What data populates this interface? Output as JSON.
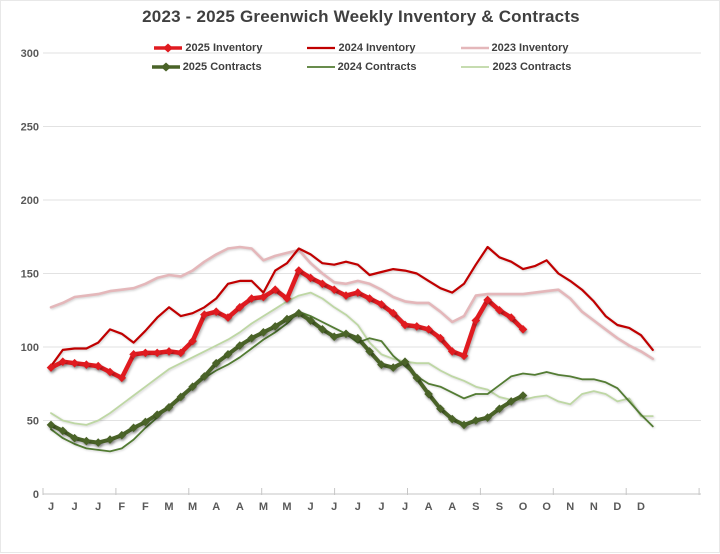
{
  "chart_data": {
    "type": "line",
    "title": "2023 - 2025 Greenwich Weekly Inventory & Contracts",
    "xlabel": "",
    "ylabel": "",
    "ylim": [
      0,
      300
    ],
    "y_ticks": [
      0,
      50,
      100,
      150,
      200,
      250,
      300
    ],
    "grid": "horizontal",
    "legend_position": "top",
    "x_unit": "week (52 weeks per year, labels every 2 weeks by month initial)",
    "x_tick_labels": [
      "J",
      "J",
      "J",
      "F",
      "F",
      "M",
      "M",
      "A",
      "A",
      "M",
      "M",
      "J",
      "J",
      "J",
      "J",
      "J",
      "A",
      "A",
      "S",
      "S",
      "O",
      "O",
      "N",
      "N",
      "D",
      "D"
    ],
    "series": [
      {
        "name": "2025 Inventory",
        "color": "#e01b20",
        "width": 4.5,
        "marker": "diamond",
        "values": [
          86,
          90,
          89,
          88,
          87,
          83,
          79,
          95,
          96,
          96,
          97,
          96,
          104,
          122,
          124,
          120,
          127,
          133,
          134,
          139,
          133,
          152,
          147,
          143,
          139,
          135,
          137,
          133,
          129,
          123,
          115,
          114,
          112,
          106,
          97,
          94,
          118,
          132,
          125,
          120,
          112
        ]
      },
      {
        "name": "2024 Inventory",
        "color": "#c00000",
        "width": 2.2,
        "marker": "none",
        "values": [
          87,
          98,
          99,
          99,
          103,
          112,
          109,
          103,
          111,
          120,
          127,
          121,
          123,
          127,
          133,
          143,
          145,
          145,
          137,
          152,
          157,
          167,
          163,
          157,
          156,
          158,
          156,
          149,
          151,
          153,
          152,
          150,
          145,
          140,
          137,
          143,
          156,
          168,
          161,
          158,
          153,
          155,
          159,
          150,
          145,
          139,
          131,
          121,
          115,
          113,
          108,
          98
        ]
      },
      {
        "name": "2023 Inventory",
        "color": "#e4b7ba",
        "width": 2.6,
        "marker": "none",
        "values": [
          127,
          130,
          134,
          135,
          136,
          138,
          139,
          140,
          143,
          147,
          149,
          148,
          152,
          158,
          163,
          167,
          168,
          167,
          159,
          162,
          164,
          166,
          157,
          150,
          144,
          143,
          145,
          143,
          139,
          134,
          131,
          130,
          130,
          124,
          117,
          121,
          135,
          136,
          136,
          136,
          136,
          137,
          138,
          139,
          133,
          124,
          118,
          112,
          106,
          101,
          97,
          92
        ]
      },
      {
        "name": "2025 Contracts",
        "color": "#4a6328",
        "width": 4,
        "marker": "diamond",
        "values": [
          47,
          43,
          38,
          36,
          35,
          37,
          40,
          45,
          49,
          54,
          59,
          66,
          73,
          80,
          89,
          95,
          101,
          106,
          110,
          114,
          119,
          123,
          118,
          112,
          107,
          109,
          106,
          97,
          88,
          86,
          90,
          79,
          68,
          58,
          51,
          47,
          50,
          52,
          58,
          63,
          67
        ]
      },
      {
        "name": "2024 Contracts",
        "color": "#537c33",
        "width": 1.8,
        "marker": "none",
        "values": [
          44,
          38,
          34,
          31,
          30,
          29,
          31,
          37,
          45,
          52,
          60,
          67,
          73,
          79,
          84,
          88,
          93,
          99,
          105,
          110,
          116,
          124,
          121,
          117,
          113,
          109,
          103,
          106,
          104,
          94,
          87,
          80,
          75,
          73,
          69,
          65,
          68,
          68,
          74,
          80,
          82,
          81,
          83,
          81,
          80,
          78,
          78,
          76,
          72,
          63,
          54,
          46
        ]
      },
      {
        "name": "2023 Contracts",
        "color": "#bed7a4",
        "width": 1.8,
        "marker": "none",
        "values": [
          55,
          50,
          48,
          47,
          50,
          55,
          61,
          67,
          73,
          79,
          85,
          89,
          93,
          97,
          101,
          105,
          110,
          116,
          121,
          126,
          131,
          135,
          137,
          133,
          127,
          122,
          115,
          103,
          95,
          92,
          90,
          89,
          89,
          84,
          80,
          77,
          73,
          71,
          66,
          64,
          64,
          66,
          67,
          63,
          61,
          68,
          70,
          68,
          63,
          65,
          53,
          53
        ]
      }
    ],
    "colors": {
      "title_text": "#404040",
      "axis_text": "#595959",
      "gridline": "#e2e2e2",
      "axis_line": "#c6c6c6",
      "background": "#ffffff"
    }
  }
}
